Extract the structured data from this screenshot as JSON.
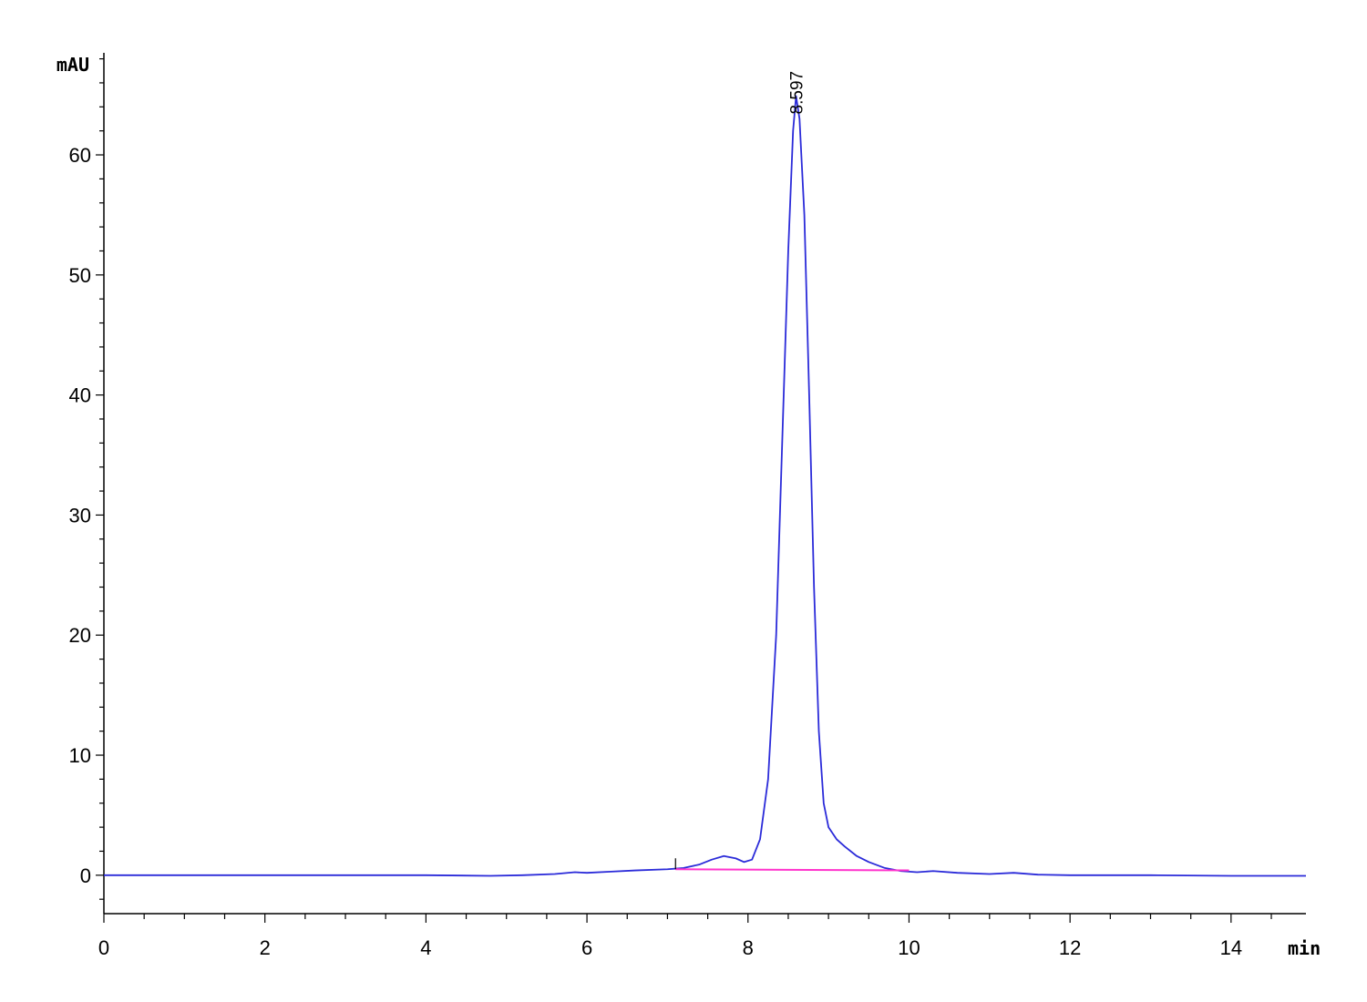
{
  "chart_data": {
    "type": "line",
    "title": "",
    "xlabel": "min",
    "ylabel": "mAU",
    "xlim": [
      0,
      14.93
    ],
    "ylim": [
      -3.2,
      68.5
    ],
    "x_ticks": [
      0,
      2,
      4,
      6,
      8,
      10,
      12,
      14
    ],
    "y_ticks": [
      0,
      10,
      20,
      30,
      40,
      50,
      60
    ],
    "grid": false,
    "legend": "none",
    "peak_labels": [
      {
        "label": "8.597",
        "x": 8.597,
        "y": 64.9
      }
    ],
    "series": [
      {
        "color": "#2b2bd9",
        "x": [
          0,
          1,
          2,
          3,
          4,
          4.8,
          5.2,
          5.6,
          5.85,
          6.0,
          6.3,
          6.6,
          7.0,
          7.2,
          7.4,
          7.55,
          7.7,
          7.85,
          7.95,
          8.05,
          8.15,
          8.25,
          8.35,
          8.42,
          8.5,
          8.56,
          8.597,
          8.64,
          8.7,
          8.76,
          8.82,
          8.88,
          8.94,
          9.0,
          9.1,
          9.2,
          9.35,
          9.5,
          9.7,
          9.9,
          10.1,
          10.3,
          10.6,
          11.0,
          11.3,
          11.6,
          12.0,
          13.0,
          14.0,
          14.93
        ],
        "y": [
          0,
          0,
          0,
          0,
          0,
          -0.05,
          0,
          0.1,
          0.25,
          0.2,
          0.3,
          0.4,
          0.5,
          0.6,
          0.9,
          1.3,
          1.6,
          1.4,
          1.1,
          1.3,
          3.0,
          8.0,
          20.0,
          35.0,
          52.0,
          62.0,
          64.9,
          63.0,
          55.0,
          40.0,
          24.0,
          12.0,
          6.0,
          4.0,
          3.0,
          2.4,
          1.6,
          1.1,
          0.6,
          0.35,
          0.25,
          0.35,
          0.2,
          0.1,
          0.2,
          0.05,
          0.0,
          0.0,
          -0.05,
          -0.05
        ]
      },
      {
        "color": "#ff33cc",
        "x": [
          7.1,
          10.0
        ],
        "y": [
          0.5,
          0.4
        ]
      }
    ]
  }
}
